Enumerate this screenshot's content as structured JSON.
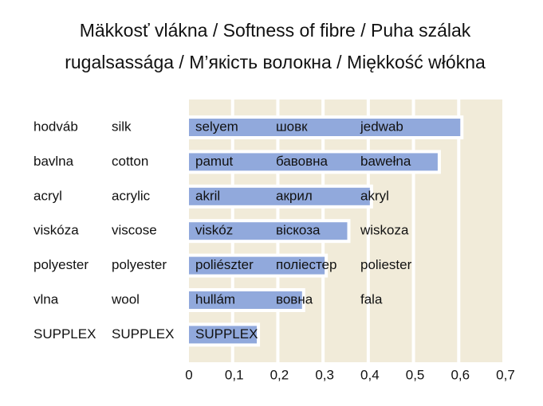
{
  "chart_data": {
    "type": "bar",
    "orientation": "horizontal",
    "title": [
      "Mäkkosť vlákna / Softness of fibre / Puha szálak",
      "rugalsassága / M’якість волокна / Miękkość włókna"
    ],
    "categories": [
      [
        "hodváb",
        "silk",
        "selyem",
        "шовк",
        "jedwab"
      ],
      [
        "bavlna",
        "cotton",
        "pamut",
        "бавовна",
        "bawełna"
      ],
      [
        "acryl",
        "acrylic",
        "akril",
        "акрил",
        "akryl"
      ],
      [
        "viskóza",
        "viscose",
        "viskóz",
        "віскоза",
        "wiskoza"
      ],
      [
        "polyester",
        "polyester",
        "poliészter",
        "поліестер",
        "poliester"
      ],
      [
        "vlna",
        "wool",
        "hullám",
        "вовна",
        "fala"
      ],
      [
        "SUPPLEX",
        "SUPPLEX",
        "SUPPLEX"
      ]
    ],
    "values": [
      0.6,
      0.55,
      0.4,
      0.35,
      0.3,
      0.25,
      0.15
    ],
    "color": "#91a9dc",
    "background_color": "#f1ebd9",
    "xlim": [
      0,
      0.7
    ],
    "xticks": [
      0,
      {
        "value": 0.1,
        "label": "0,1"
      },
      {
        "value": 0.2,
        "label": "0,2"
      },
      {
        "value": 0.3,
        "label": "0,3"
      },
      {
        "value": 0.4,
        "label": "0,4"
      },
      {
        "value": 0.5,
        "label": "0,5"
      },
      {
        "value": 0.6,
        "label": "0,6"
      },
      {
        "value": 0.7,
        "label": "0,7"
      }
    ]
  }
}
